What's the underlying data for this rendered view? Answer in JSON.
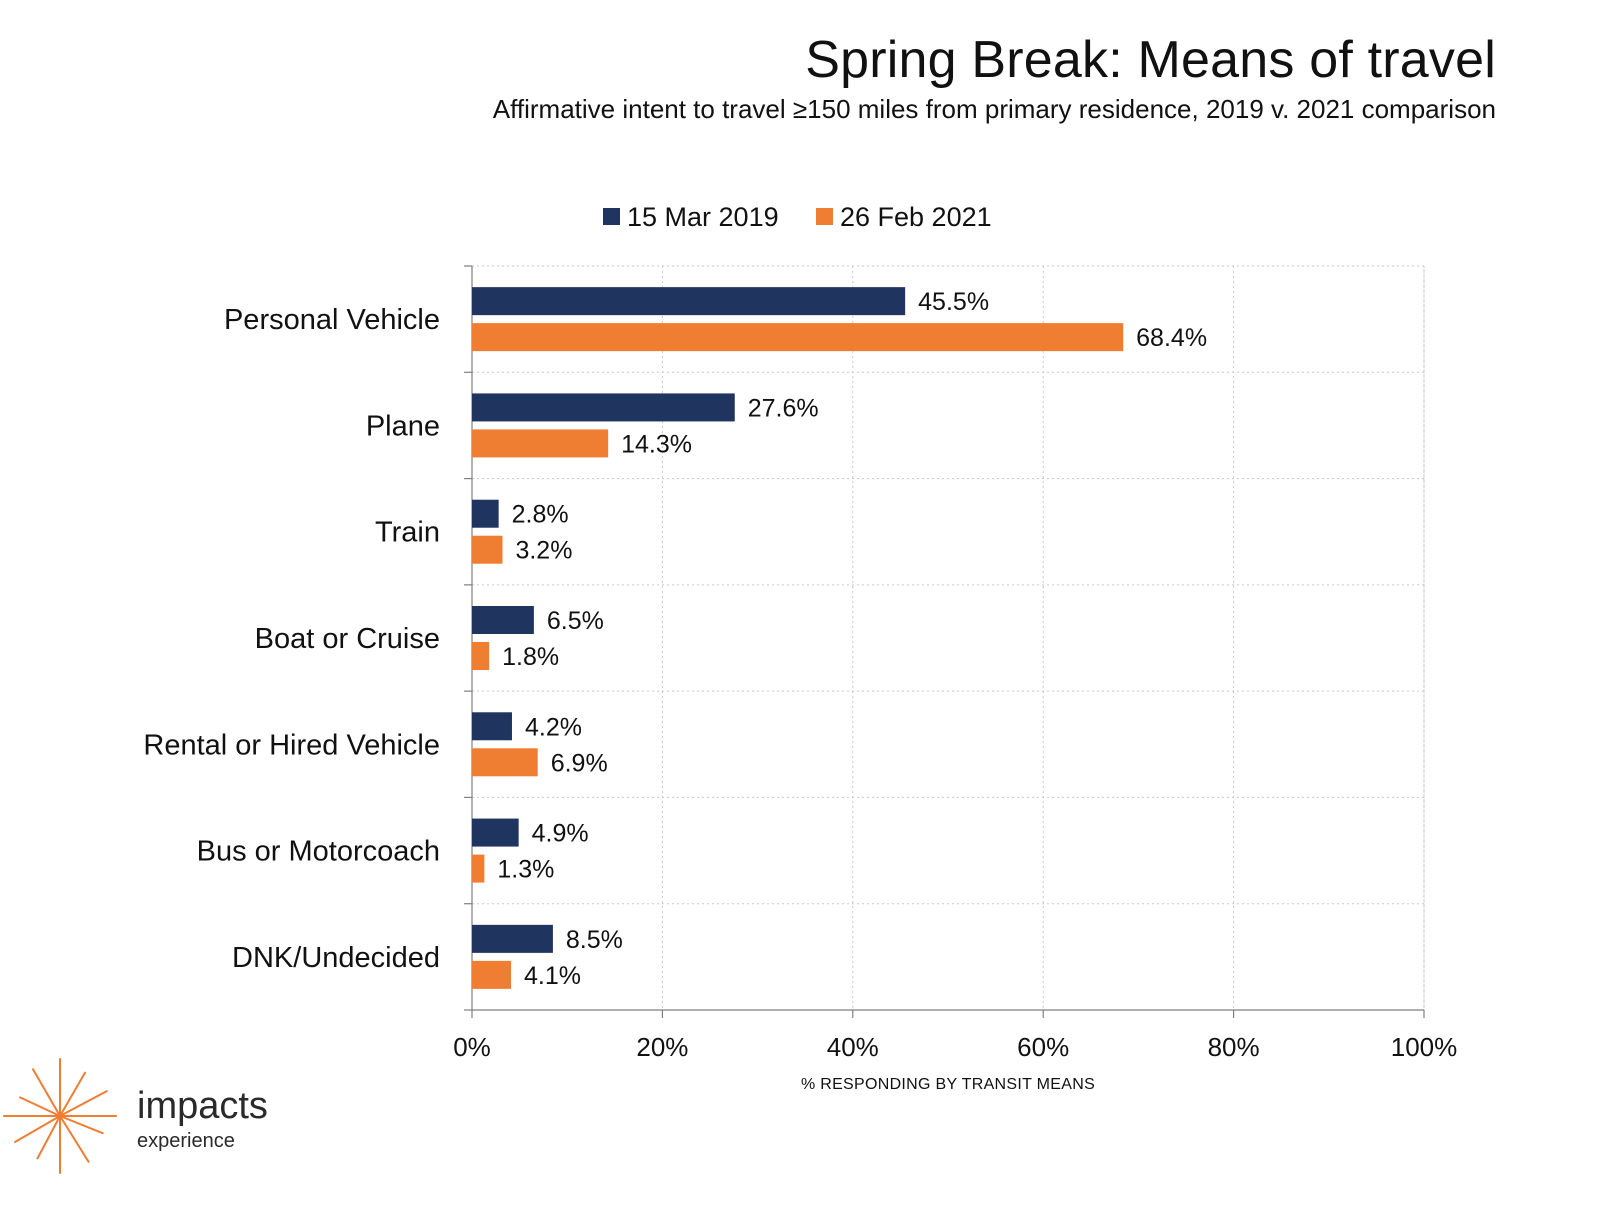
{
  "header": {
    "title": "Spring Break: Means of travel",
    "subtitle": "Affirmative intent to travel ≥150 miles from primary residence, 2019 v. 2021 comparison"
  },
  "brand": {
    "name": "impacts",
    "tagline": "experience",
    "icon": "starburst-logo-icon",
    "color": "#ef7d32"
  },
  "chart_data": {
    "type": "bar",
    "orientation": "horizontal",
    "categories": [
      "Personal Vehicle",
      "Plane",
      "Train",
      "Boat or Cruise",
      "Rental or Hired Vehicle",
      "Bus or Motorcoach",
      "DNK/Undecided"
    ],
    "series": [
      {
        "name": "15 Mar 2019",
        "color": "#1f3560",
        "values": [
          45.5,
          27.6,
          2.8,
          6.5,
          4.2,
          4.9,
          8.5
        ],
        "labels": [
          "45.5%",
          "27.6%",
          "2.8%",
          "6.5%",
          "4.2%",
          "4.9%",
          "8.5%"
        ]
      },
      {
        "name": "26 Feb 2021",
        "color": "#ef7d32",
        "values": [
          68.4,
          14.3,
          3.2,
          1.8,
          6.9,
          1.3,
          4.1
        ],
        "labels": [
          "68.4%",
          "14.3%",
          "3.2%",
          "1.8%",
          "6.9%",
          "1.3%",
          "4.1%"
        ]
      }
    ],
    "xlim": [
      0,
      100
    ],
    "xticks": [
      0,
      20,
      40,
      60,
      80,
      100
    ],
    "xtick_labels": [
      "0%",
      "20%",
      "40%",
      "60%",
      "80%",
      "100%"
    ],
    "xlabel": "% RESPONDING BY TRANSIT MEANS",
    "ylabel": "",
    "legend_position": "top",
    "grid": "dotted"
  }
}
